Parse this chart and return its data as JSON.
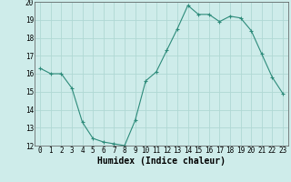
{
  "x": [
    0,
    1,
    2,
    3,
    4,
    5,
    6,
    7,
    8,
    9,
    10,
    11,
    12,
    13,
    14,
    15,
    16,
    17,
    18,
    19,
    20,
    21,
    22,
    23
  ],
  "y": [
    16.3,
    16.0,
    16.0,
    15.2,
    13.3,
    12.4,
    12.2,
    12.1,
    12.0,
    13.4,
    15.6,
    16.1,
    17.3,
    18.5,
    19.8,
    19.3,
    19.3,
    18.9,
    19.2,
    19.1,
    18.4,
    17.1,
    15.8,
    14.9
  ],
  "xlabel": "Humidex (Indice chaleur)",
  "ylim": [
    12,
    20
  ],
  "xlim": [
    -0.5,
    23.5
  ],
  "yticks": [
    12,
    13,
    14,
    15,
    16,
    17,
    18,
    19,
    20
  ],
  "xticks": [
    0,
    1,
    2,
    3,
    4,
    5,
    6,
    7,
    8,
    9,
    10,
    11,
    12,
    13,
    14,
    15,
    16,
    17,
    18,
    19,
    20,
    21,
    22,
    23
  ],
  "line_color": "#2d8b7a",
  "marker_color": "#2d8b7a",
  "bg_color": "#ceecea",
  "grid_color": "#b0d8d4",
  "label_fontsize": 7,
  "tick_fontsize": 5.5
}
